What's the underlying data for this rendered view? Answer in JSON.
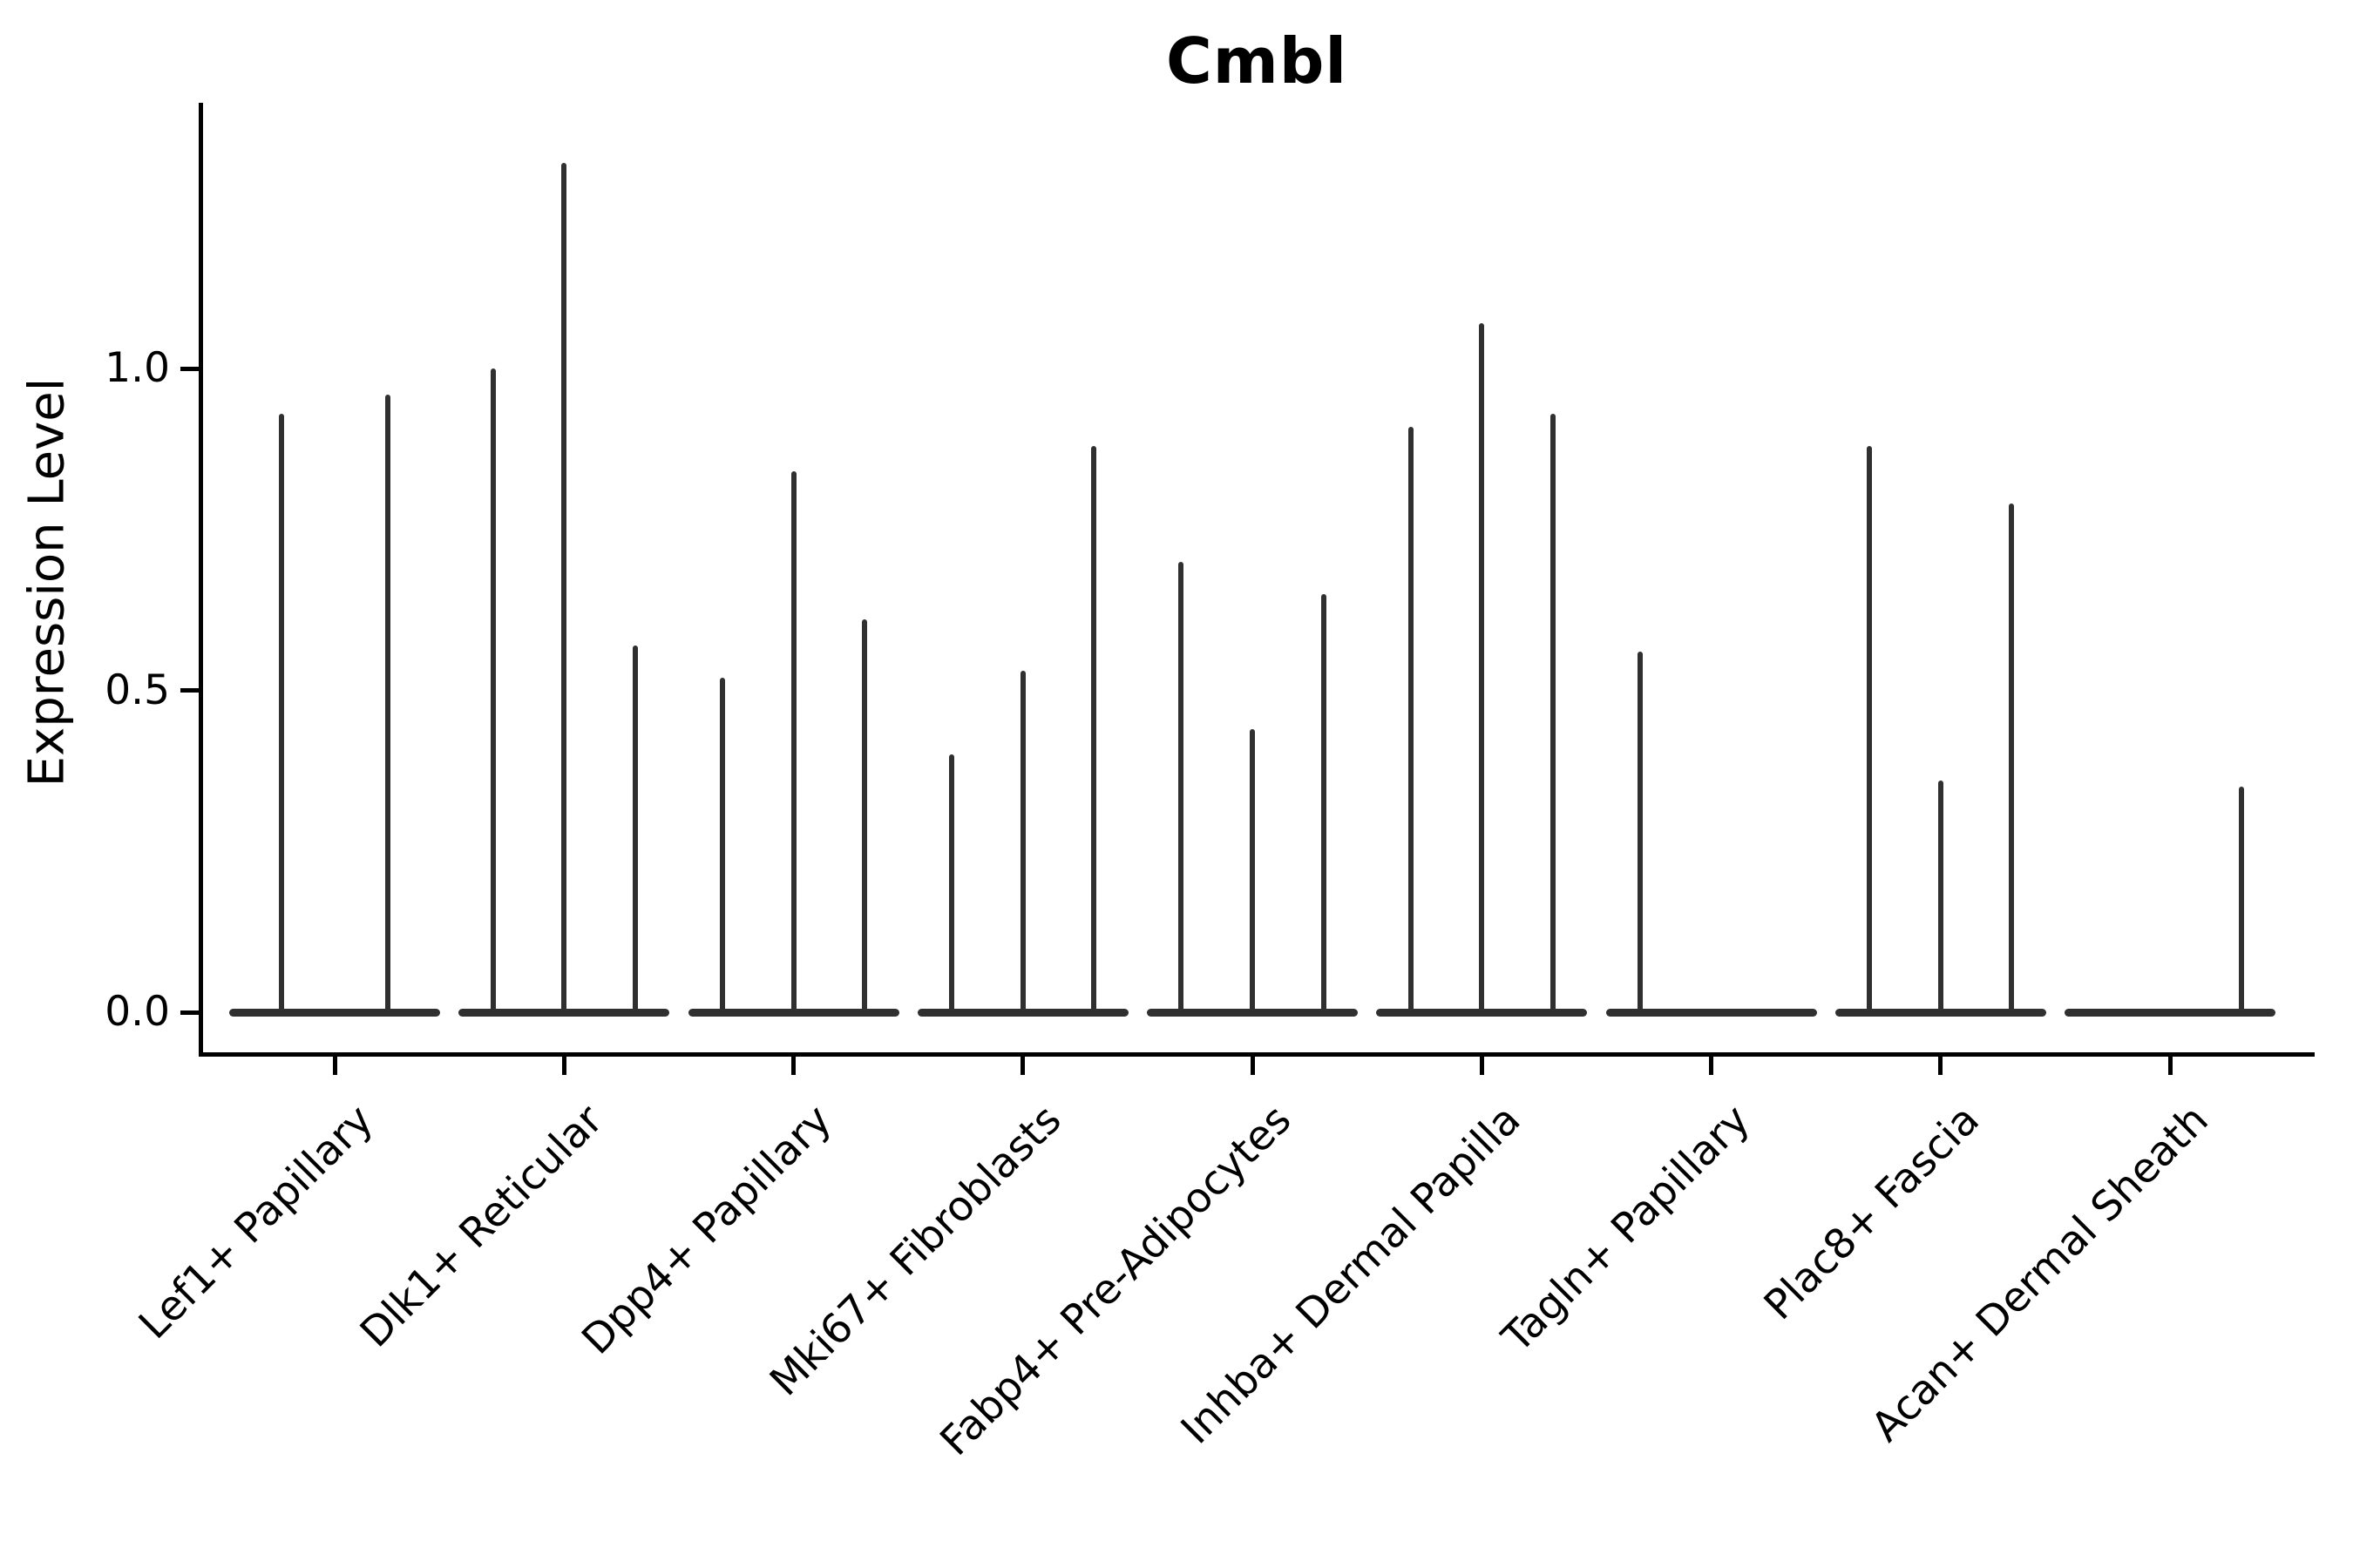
{
  "title": "Cmbl",
  "axes": {
    "ylabel": "Expression Level",
    "y_tick_labels": [
      "0.0",
      "0.5",
      "1.0"
    ]
  },
  "chart_data": {
    "type": "violin",
    "title": "Cmbl",
    "xlabel": "",
    "ylabel": "Expression Level",
    "yticks": [
      0.0,
      0.5,
      1.0
    ],
    "ylim": [
      -0.07,
      1.41
    ],
    "grid": false,
    "legend": "none",
    "violin_color": "#303030",
    "baseline_value": 0.0,
    "description": "Zero-inflated violins: each cluster shows a flat density base at expression 0 with thin spikes reaching the maximum expression of each sub-violin.",
    "categories": [
      "Lef1+ Papillary",
      "Dlk1+ Reticular",
      "Dpp4+ Papillary",
      "Mki67+ Fibroblasts",
      "Fabp4+ Pre-Adipocytes",
      "Inhba+ Dermal Papilla",
      "Tagln+ Papillary",
      "Plac8+ Fascia",
      "Acan+ Dermal Sheath"
    ],
    "groups": [
      {
        "category": "Lef1+ Papillary",
        "violins": [
          {
            "pos_offset": -0.23,
            "max_expression": 0.93
          },
          {
            "pos_offset": 0.23,
            "max_expression": 0.96
          }
        ]
      },
      {
        "category": "Dlk1+ Reticular",
        "violins": [
          {
            "pos_offset": -0.31,
            "max_expression": 1.0
          },
          {
            "pos_offset": 0.0,
            "max_expression": 1.32
          },
          {
            "pos_offset": 0.31,
            "max_expression": 0.57
          }
        ]
      },
      {
        "category": "Dpp4+ Papillary",
        "violins": [
          {
            "pos_offset": -0.31,
            "max_expression": 0.52
          },
          {
            "pos_offset": 0.0,
            "max_expression": 0.84
          },
          {
            "pos_offset": 0.31,
            "max_expression": 0.61
          }
        ]
      },
      {
        "category": "Mki67+ Fibroblasts",
        "violins": [
          {
            "pos_offset": -0.31,
            "max_expression": 0.4
          },
          {
            "pos_offset": 0.0,
            "max_expression": 0.53
          },
          {
            "pos_offset": 0.31,
            "max_expression": 0.88
          }
        ]
      },
      {
        "category": "Fabp4+ Pre-Adipocytes",
        "violins": [
          {
            "pos_offset": -0.31,
            "max_expression": 0.7
          },
          {
            "pos_offset": 0.0,
            "max_expression": 0.44
          },
          {
            "pos_offset": 0.31,
            "max_expression": 0.65
          }
        ]
      },
      {
        "category": "Inhba+ Dermal Papilla",
        "violins": [
          {
            "pos_offset": -0.31,
            "max_expression": 0.91
          },
          {
            "pos_offset": 0.0,
            "max_expression": 1.07
          },
          {
            "pos_offset": 0.31,
            "max_expression": 0.93
          }
        ]
      },
      {
        "category": "Tagln+ Papillary",
        "violins": [
          {
            "pos_offset": -0.31,
            "max_expression": 0.56
          }
        ]
      },
      {
        "category": "Plac8+ Fascia",
        "violins": [
          {
            "pos_offset": -0.31,
            "max_expression": 0.88
          },
          {
            "pos_offset": 0.0,
            "max_expression": 0.36
          },
          {
            "pos_offset": 0.31,
            "max_expression": 0.79
          }
        ]
      },
      {
        "category": "Acan+ Dermal Sheath",
        "violins": [
          {
            "pos_offset": 0.31,
            "max_expression": 0.35
          }
        ]
      }
    ]
  }
}
